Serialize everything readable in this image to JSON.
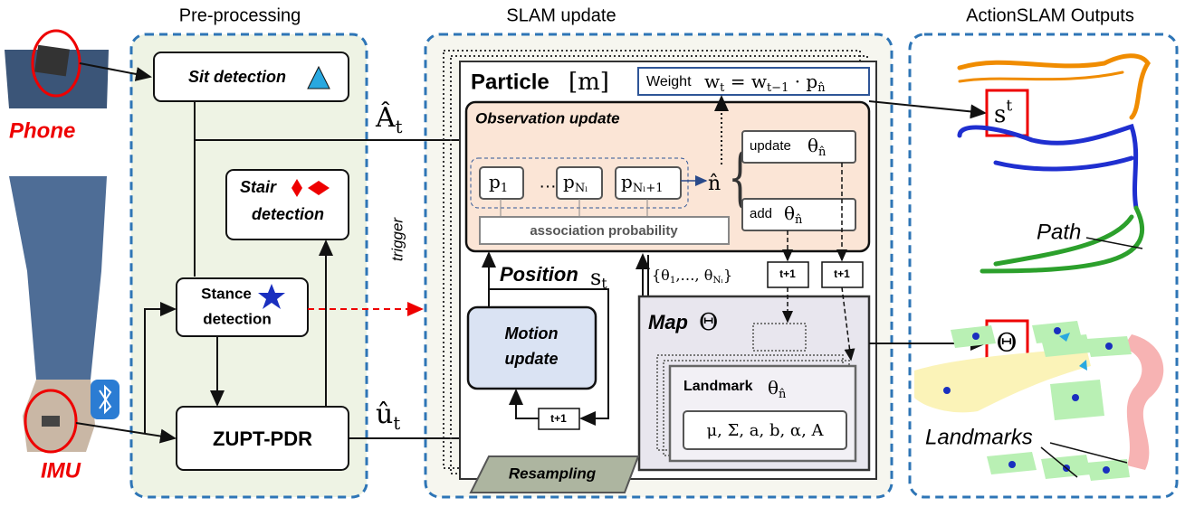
{
  "sections": {
    "preprocessing": "Pre-processing",
    "slam": "SLAM update",
    "outputs": "ActionSLAM Outputs"
  },
  "devices": {
    "phone": "Phone",
    "imu": "IMU"
  },
  "preprocessing": {
    "sit": "Sit detection",
    "stair": [
      "Stair",
      "detection"
    ],
    "stance": [
      "Stance",
      "detection"
    ],
    "zupt": "ZUPT-PDR",
    "trigger": "trigger",
    "a_hat": [
      "Â",
      "t"
    ],
    "u_hat": [
      "û",
      "t"
    ]
  },
  "particle": {
    "title": "Particle",
    "index": "[m]",
    "weight_label": "Weight",
    "weight": [
      "w",
      "t",
      " = w",
      "t−1",
      " · p",
      "n̂"
    ],
    "observation": "Observation update",
    "p1": [
      "p",
      "1"
    ],
    "dots": "…",
    "pNl": [
      "p",
      "Nₗ"
    ],
    "pNl1": [
      "p",
      "Nₗ+1"
    ],
    "n_hat": "n̂",
    "brace": "{",
    "update": "update",
    "update_theta": [
      "θ",
      "n̂"
    ],
    "add": "add",
    "add_theta": [
      "θ",
      "n̂"
    ],
    "association": "association probability",
    "position": "Position",
    "position_s": [
      "s",
      "t"
    ],
    "theta_set": [
      "{θ",
      "1",
      ",…, θ",
      "Nₗ",
      "}"
    ],
    "t_plus": [
      "t+1",
      "t+1",
      "t+1"
    ],
    "motion": [
      "Motion",
      "update"
    ],
    "map": "Map",
    "map_symbol": "Θ",
    "landmark": "Landmark",
    "landmark_theta": [
      "θ",
      "n̂"
    ],
    "params": "μ, Σ, a, b, α, A",
    "resampling": "Resampling"
  },
  "outputs": {
    "s": [
      "s",
      "t"
    ],
    "theta": "Θ",
    "path": "Path",
    "landmarks": "Landmarks"
  }
}
